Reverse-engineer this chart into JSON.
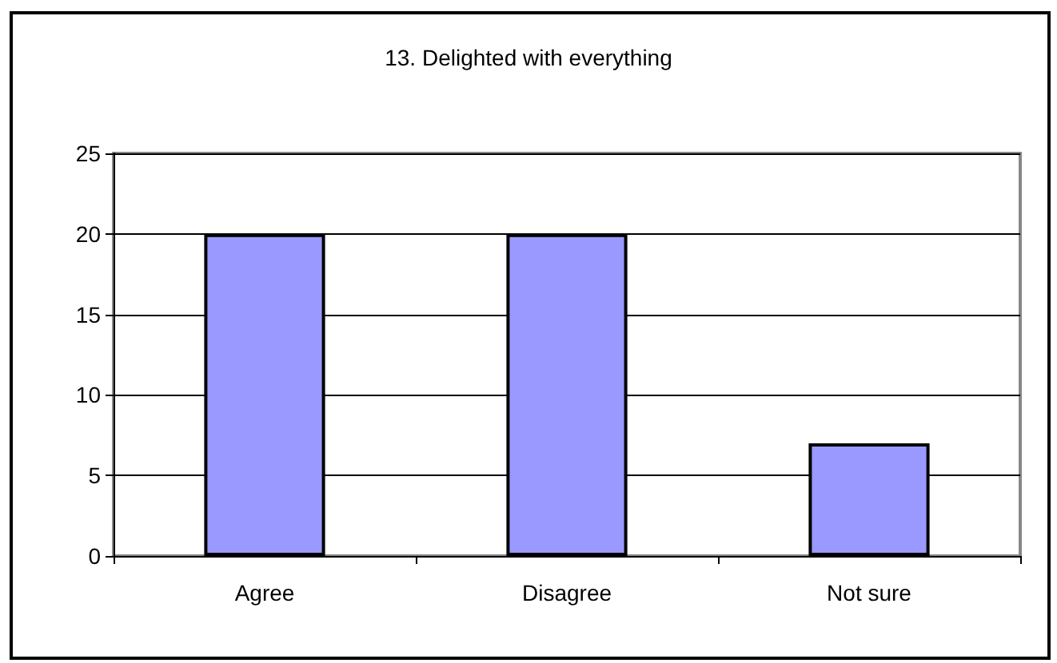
{
  "chart_data": {
    "type": "bar",
    "title": "13. Delighted with everything",
    "categories": [
      "Agree",
      "Disagree",
      "Not sure"
    ],
    "values": [
      20,
      20,
      7
    ],
    "color": "#9999ff",
    "ylim": [
      0,
      25
    ],
    "yticks": [
      0,
      5,
      10,
      15,
      20,
      25
    ],
    "grid": "y"
  }
}
